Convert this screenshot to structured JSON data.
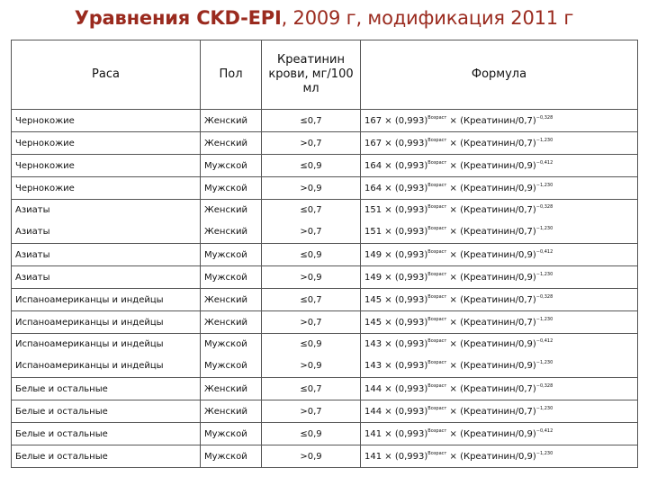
{
  "title": {
    "prefix": "Уравнения",
    "bold_part": "CKD-EPI",
    "suffix": ", 2009 г, модификация 2011 г"
  },
  "table": {
    "headers": [
      "Раса",
      "Пол",
      "Креатинин крови, мг/100 мл",
      "Формула"
    ],
    "formula_parts": {
      "power_label": "Возраст"
    },
    "rows": [
      {
        "race": [
          "Чернокожие"
        ],
        "sex": [
          "Женский"
        ],
        "cr": [
          "≤0,7"
        ],
        "f": [
          {
            "a": "167 × (0,993)",
            "b": " × (Креатинин/0,7)",
            "e": "−0,328"
          }
        ]
      },
      {
        "race": [
          "Чернокожие"
        ],
        "sex": [
          "Женский"
        ],
        "cr": [
          ">0,7"
        ],
        "f": [
          {
            "a": "167 × (0,993)",
            "b": " × (Креатинин/0,7)",
            "e": "−1,230"
          }
        ]
      },
      {
        "race": [
          "Чернокожие"
        ],
        "sex": [
          "Мужской"
        ],
        "cr": [
          "≤0,9"
        ],
        "f": [
          {
            "a": "164 × (0,993)",
            "b": " × (Креатинин/0,9)",
            "e": "−0,412"
          }
        ]
      },
      {
        "race": [
          "Чернокожие"
        ],
        "sex": [
          "Мужской"
        ],
        "cr": [
          ">0,9"
        ],
        "f": [
          {
            "a": "164 × (0,993)",
            "b": " × (Креатинин/0,9)",
            "e": "−1,230"
          }
        ]
      },
      {
        "race": [
          "Азиаты",
          "Азиаты"
        ],
        "sex": [
          "Женский",
          "Женский"
        ],
        "cr": [
          "≤0,7",
          ">0,7"
        ],
        "f": [
          {
            "a": "151 × (0,993)",
            "b": " × (Креатинин/0,7)",
            "e": "−0,328"
          },
          {
            "a": "151 × (0,993)",
            "b": " × (Креатинин/0,7)",
            "e": "−1,230"
          }
        ]
      },
      {
        "race": [
          "Азиаты"
        ],
        "sex": [
          "Мужской"
        ],
        "cr": [
          "≤0,9"
        ],
        "f": [
          {
            "a": "149 × (0,993)",
            "b": " × (Креатинин/0,9)",
            "e": "−0,412"
          }
        ]
      },
      {
        "race": [
          "Азиаты"
        ],
        "sex": [
          "Мужской"
        ],
        "cr": [
          ">0,9"
        ],
        "f": [
          {
            "a": "149 × (0,993)",
            "b": " × (Креатинин/0,9)",
            "e": "−1,230"
          }
        ]
      },
      {
        "race": [
          "Испаноамериканцы и индейцы"
        ],
        "sex": [
          "Женский"
        ],
        "cr": [
          "≤0,7"
        ],
        "f": [
          {
            "a": "145 × (0,993)",
            "b": " × (Креатинин/0,7)",
            "e": "−0,328"
          }
        ]
      },
      {
        "race": [
          "Испаноамериканцы и индейцы"
        ],
        "sex": [
          "Женский"
        ],
        "cr": [
          ">0,7"
        ],
        "f": [
          {
            "a": "145 × (0,993)",
            "b": " × (Креатинин/0,7)",
            "e": "−1,230"
          }
        ]
      },
      {
        "race": [
          "Испаноамериканцы и индейцы",
          "Испаноамериканцы и индейцы"
        ],
        "sex": [
          "Мужской",
          "Мужской"
        ],
        "cr": [
          "≤0,9",
          ">0,9"
        ],
        "f": [
          {
            "a": "143 × (0,993)",
            "b": " × (Креатинин/0,9)",
            "e": "−0,412"
          },
          {
            "a": "143 × (0,993)",
            "b": " × (Креатинин/0,9)",
            "e": "−1,230"
          }
        ]
      },
      {
        "race": [
          "Белые и остальные"
        ],
        "sex": [
          "Женский"
        ],
        "cr": [
          "≤0,7"
        ],
        "f": [
          {
            "a": "144 × (0,993)",
            "b": " × (Креатинин/0,7)",
            "e": "−0,328"
          }
        ]
      },
      {
        "race": [
          "Белые и остальные"
        ],
        "sex": [
          "Женский"
        ],
        "cr": [
          ">0,7"
        ],
        "f": [
          {
            "a": "144 × (0,993)",
            "b": " × (Креатинин/0,7)",
            "e": "−1,230"
          }
        ]
      },
      {
        "race": [
          "Белые и остальные"
        ],
        "sex": [
          "Мужской"
        ],
        "cr": [
          "≤0,9"
        ],
        "f": [
          {
            "a": "141 × (0,993)",
            "b": " × (Креатинин/0,9)",
            "e": "−0,412"
          }
        ]
      },
      {
        "race": [
          "Белые и остальные"
        ],
        "sex": [
          "Мужской"
        ],
        "cr": [
          ">0,9"
        ],
        "f": [
          {
            "a": "141 × (0,993)",
            "b": " × (Креатинин/0,9)",
            "e": "−1,230"
          }
        ]
      }
    ]
  }
}
